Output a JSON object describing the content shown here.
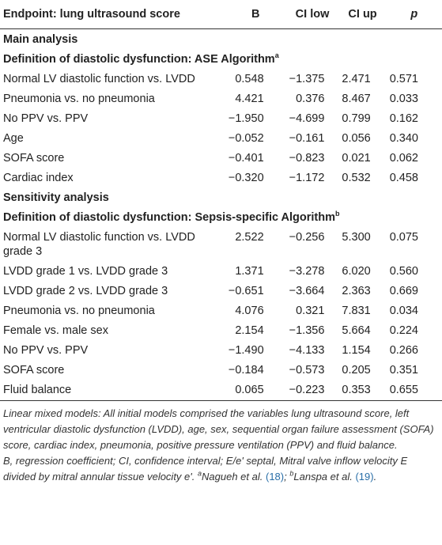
{
  "table": {
    "columns": [
      "Endpoint: lung ultrasound score",
      "B",
      "CI low",
      "CI up",
      "p"
    ],
    "sections": [
      {
        "title": "Main analysis",
        "subtitle": "Definition of diastolic dysfunction: ASE Algorithm",
        "subtitle_note": "a",
        "rows": [
          [
            "Normal LV diastolic function vs. LVDD",
            "0.548",
            "−1.375",
            "2.471",
            "0.571"
          ],
          [
            "Pneumonia vs. no pneumonia",
            "4.421",
            "0.376",
            "8.467",
            "0.033"
          ],
          [
            "No PPV vs. PPV",
            "−1.950",
            "−4.699",
            "0.799",
            "0.162"
          ],
          [
            "Age",
            "−0.052",
            "−0.161",
            "0.056",
            "0.340"
          ],
          [
            "SOFA score",
            "−0.401",
            "−0.823",
            "0.021",
            "0.062"
          ],
          [
            "Cardiac index",
            "−0.320",
            "−1.172",
            "0.532",
            "0.458"
          ]
        ]
      },
      {
        "title": "Sensitivity analysis",
        "subtitle": "Definition of diastolic dysfunction: Sepsis-specific Algorithm",
        "subtitle_note": "b",
        "rows": [
          [
            "Normal LV diastolic function vs. LVDD grade 3",
            "2.522",
            "−0.256",
            "5.300",
            "0.075"
          ],
          [
            "LVDD grade 1 vs. LVDD grade 3",
            "1.371",
            "−3.278",
            "6.020",
            "0.560"
          ],
          [
            "LVDD grade 2 vs. LVDD grade 3",
            "−0.651",
            "−3.664",
            "2.363",
            "0.669"
          ],
          [
            "Pneumonia vs. no pneumonia",
            "4.076",
            "0.321",
            "7.831",
            "0.034"
          ],
          [
            "Female vs. male sex",
            "2.154",
            "−1.356",
            "5.664",
            "0.224"
          ],
          [
            "No PPV vs. PPV",
            "−1.490",
            "−4.133",
            "1.154",
            "0.266"
          ],
          [
            "SOFA score",
            "−0.184",
            "−0.573",
            "0.205",
            "0.351"
          ],
          [
            "Fluid balance",
            "0.065",
            "−0.223",
            "0.353",
            "0.655"
          ]
        ]
      }
    ]
  },
  "footnotes": {
    "note": "Linear mixed models: All initial models comprised the variables lung ultrasound score, left ventricular diastolic dysfunction (LVDD), age, sex, sequential organ failure assessment (SOFA) score, cardiac index, pneumonia, positive pressure ventilation (PPV) and fluid balance.",
    "abbreviations": "B, regression coefficient; CI, confidence interval; E/e' septal, Mitral valve inflow velocity E divided by mitral annular tissue velocity e'.",
    "refs": [
      {
        "mark": "a",
        "author": "Nagueh et al.",
        "cite": "(18)",
        "end": ";"
      },
      {
        "mark": "b",
        "author": "Lanspa et al.",
        "cite": "(19)",
        "end": "."
      }
    ]
  }
}
